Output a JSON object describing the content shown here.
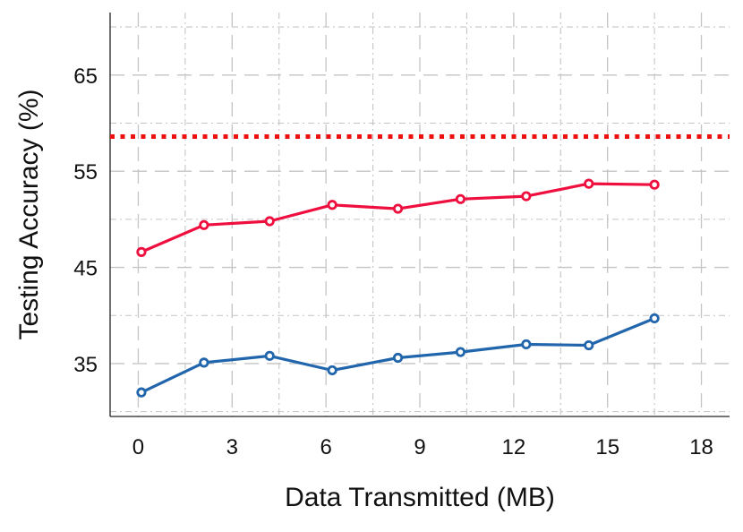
{
  "chart_data": {
    "type": "line",
    "title": "",
    "xlabel": "Data Transmitted (MB)",
    "ylabel": "Testing Accuracy (%)",
    "xlim": [
      -0.9,
      18.9
    ],
    "ylim": [
      29.5,
      71.5
    ],
    "xticks": [
      0,
      3,
      6,
      9,
      12,
      15,
      18
    ],
    "yticks": [
      35,
      45,
      55,
      65
    ],
    "grid": true,
    "legend": "none",
    "series": [
      {
        "color": "#ee0f3f",
        "style": "solid-marker",
        "x": [
          0.1,
          2.1,
          4.2,
          6.2,
          8.3,
          10.3,
          12.4,
          14.4,
          16.5
        ],
        "y": [
          46.6,
          49.4,
          49.8,
          51.5,
          51.1,
          52.1,
          52.4,
          53.7,
          53.6
        ]
      },
      {
        "color": "#2166ac",
        "style": "solid-marker",
        "x": [
          0.1,
          2.1,
          4.2,
          6.2,
          8.3,
          10.3,
          12.4,
          14.4,
          16.5
        ],
        "y": [
          32.0,
          35.1,
          35.8,
          34.3,
          35.6,
          36.2,
          37.0,
          36.9,
          39.7
        ]
      }
    ],
    "reference_line": {
      "y": 58.6,
      "color": "#ee0f0f",
      "style": "dotted"
    }
  }
}
